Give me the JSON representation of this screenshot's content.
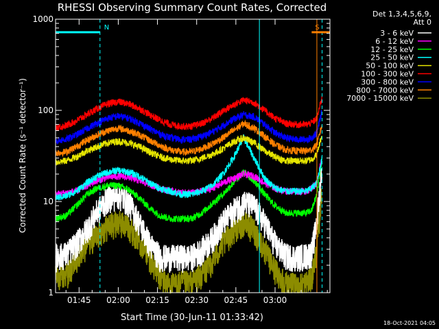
{
  "chart_data": {
    "type": "line",
    "title": "RHESSI Observing Summary Count Rates, Corrected",
    "xlabel": "Start Time (30-Jun-11 01:33:42)",
    "ylabel": "Corrected Count Rate (s⁻¹ detector⁻¹)",
    "yscale": "log",
    "ylim": [
      1,
      1000
    ],
    "xlim_minutes": [
      96,
      201
    ],
    "x_ticks": [
      {
        "t": 105,
        "label": "01:45"
      },
      {
        "t": 120,
        "label": "02:00"
      },
      {
        "t": 135,
        "label": "02:15"
      },
      {
        "t": 150,
        "label": "02:30"
      },
      {
        "t": 165,
        "label": "02:45"
      },
      {
        "t": 180,
        "label": "03:00"
      }
    ],
    "y_ticks": [
      {
        "v": 1,
        "label": "1"
      },
      {
        "v": 10,
        "label": "10"
      },
      {
        "v": 100,
        "label": "100"
      },
      {
        "v": 1000,
        "label": "1000"
      }
    ],
    "legend_header": [
      "Det 1,3,4,5,6,9,",
      "Att 0"
    ],
    "flags": [
      {
        "label": "N",
        "color": "#00ffff",
        "start": 96,
        "end": 113
      },
      {
        "label": "S",
        "color": "#ff8000",
        "start": 194,
        "end": 201
      }
    ],
    "markers": [
      {
        "t": 113,
        "style": "dashed",
        "color": "#00ffff"
      },
      {
        "t": 174,
        "style": "solid",
        "color": "#00ffff"
      },
      {
        "t": 196,
        "style": "solid",
        "color": "#ff8000"
      },
      {
        "t": 198,
        "style": "dashed",
        "color": "#00ffff"
      }
    ],
    "x": [
      96,
      100,
      104,
      108,
      112,
      116,
      120,
      124,
      128,
      132,
      136,
      140,
      144,
      148,
      152,
      156,
      160,
      164,
      168,
      172,
      176,
      180,
      184,
      188,
      192,
      194,
      196,
      198
    ],
    "series": [
      {
        "name": "3 - 6 keV",
        "color": "#ffffff",
        "values": [
          2.5,
          2.7,
          3.5,
          5,
          8,
          11,
          12,
          10,
          6,
          3.5,
          2.5,
          2.5,
          2.5,
          2.5,
          3,
          4,
          6,
          8,
          10,
          9,
          6,
          3.5,
          2.6,
          2.5,
          2.6,
          2.8,
          6,
          25
        ]
      },
      {
        "name": "6 - 12 keV",
        "color": "#ff00ff",
        "values": [
          12,
          12.5,
          13,
          15,
          17,
          18.5,
          19,
          18.5,
          17,
          15.5,
          14,
          13,
          12.5,
          12.5,
          13,
          14,
          16,
          18,
          20,
          19,
          16,
          14,
          13,
          13,
          13,
          14,
          16,
          30
        ]
      },
      {
        "name": "12 - 25 keV",
        "color": "#00ff00",
        "values": [
          6.5,
          7,
          9,
          12,
          14,
          15,
          15,
          13.5,
          11,
          8.5,
          7,
          6.5,
          6.5,
          6.5,
          7.5,
          9.5,
          12,
          16,
          21,
          17,
          12,
          9,
          7.5,
          7.5,
          7.5,
          8,
          12,
          30
        ]
      },
      {
        "name": "25 - 50 keV",
        "color": "#00ffff",
        "values": [
          11,
          11.5,
          13,
          16,
          19,
          21,
          22,
          21,
          19,
          16,
          14,
          13,
          12,
          12,
          13,
          15,
          20,
          30,
          50,
          30,
          18,
          14,
          13,
          13,
          13,
          14,
          16,
          30
        ]
      },
      {
        "name": "50 - 100 keV",
        "color": "#e5e500",
        "values": [
          27,
          28,
          31,
          36,
          40,
          44,
          46,
          44,
          40,
          35,
          31,
          29,
          28,
          28,
          30,
          33,
          38,
          45,
          50,
          44,
          36,
          31,
          28,
          28,
          28,
          29,
          33,
          55
        ]
      },
      {
        "name": "100 - 300 keV",
        "color": "#ff0000",
        "values": [
          65,
          68,
          77,
          90,
          105,
          118,
          125,
          118,
          105,
          90,
          78,
          70,
          67,
          67,
          72,
          82,
          98,
          115,
          130,
          122,
          100,
          82,
          72,
          70,
          70,
          73,
          82,
          140
        ]
      },
      {
        "name": "300 - 800 keV",
        "color": "#0000ff",
        "values": [
          46,
          48,
          54,
          63,
          73,
          82,
          87,
          82,
          73,
          63,
          55,
          50,
          48,
          48,
          52,
          58,
          68,
          80,
          90,
          85,
          70,
          57,
          50,
          48,
          48,
          50,
          57,
          100
        ]
      },
      {
        "name": "800 - 7000 keV",
        "color": "#ff8000",
        "values": [
          34,
          35,
          40,
          47,
          54,
          60,
          64,
          60,
          54,
          47,
          41,
          37,
          35,
          35,
          38,
          43,
          50,
          60,
          72,
          64,
          52,
          42,
          37,
          36,
          36,
          37,
          42,
          70
        ]
      },
      {
        "name": "7000 - 15000 keV",
        "color": "#8c8c00",
        "values": [
          1.5,
          1.6,
          2.2,
          3.5,
          4.5,
          5.5,
          6,
          5.5,
          4,
          2.5,
          1.5,
          1.2,
          1.3,
          1.3,
          1.6,
          2.3,
          3.5,
          5,
          6,
          5,
          3,
          1.8,
          1.3,
          1.2,
          1.3,
          1.5,
          3,
          15
        ]
      }
    ]
  },
  "timestamp": "18-Oct-2021 04:05"
}
